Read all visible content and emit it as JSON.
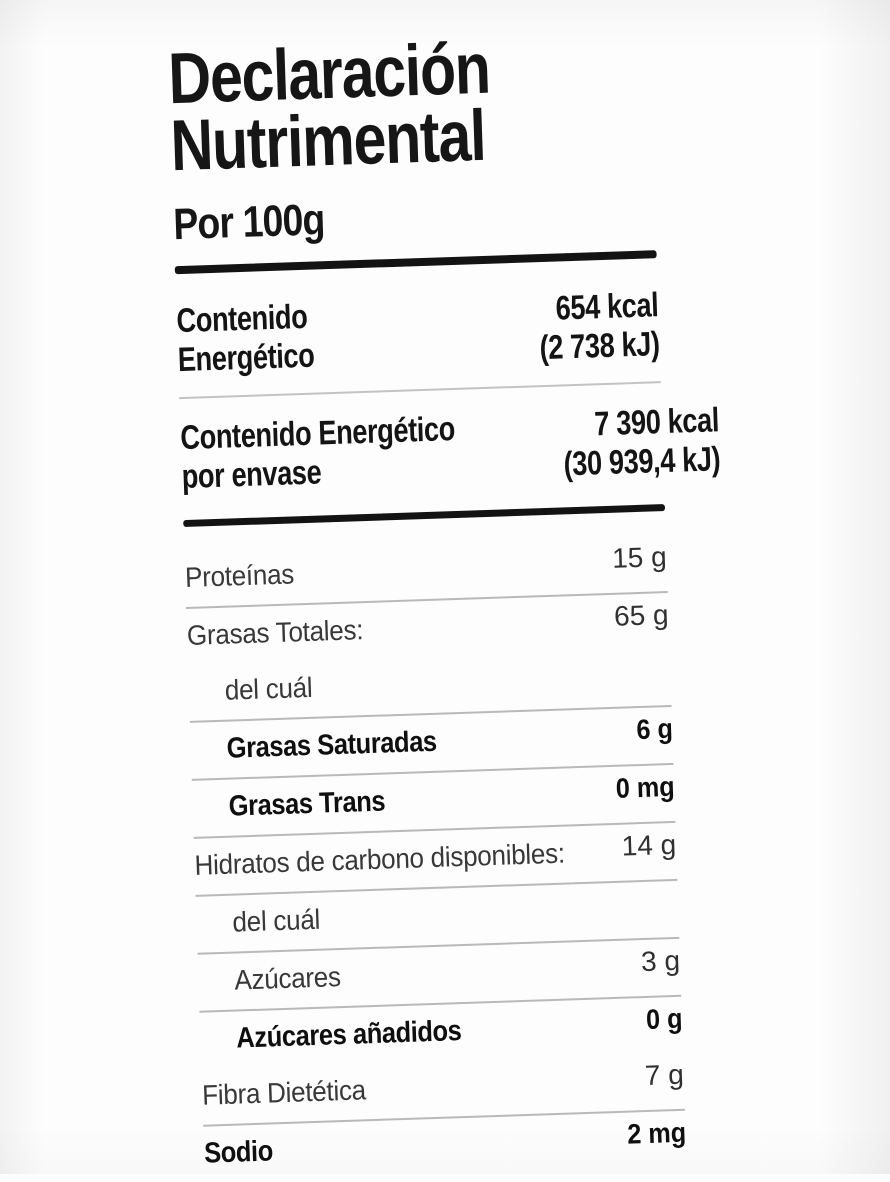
{
  "label": {
    "title_line1": "Declaración",
    "title_line2": "Nutrimental",
    "serving": "Por 100g",
    "energy_rows": [
      {
        "name_line1": "Contenido",
        "name_line2": "Energético",
        "value_line1": "654 kcal",
        "value_line2": "(2 738 kJ)"
      },
      {
        "name_line1": "Contenido Energético",
        "name_line2": "por envase",
        "value_line1": "7 390 kcal",
        "value_line2": "(30 939,4 kJ)"
      }
    ],
    "nutrient_rows": [
      {
        "name": "Proteínas",
        "value": "15 g",
        "bold": false,
        "indent": false,
        "line": true
      },
      {
        "name": "Grasas Totales:",
        "value": "65 g",
        "bold": false,
        "indent": false,
        "line": false
      },
      {
        "name": "del cuál",
        "value": "",
        "bold": false,
        "indent": true,
        "line": true
      },
      {
        "name": "Grasas Saturadas",
        "value": "6 g",
        "bold": true,
        "indent": true,
        "line": true
      },
      {
        "name": "Grasas Trans",
        "value": "0 mg",
        "bold": true,
        "indent": true,
        "line": true
      },
      {
        "name": "Hidratos de carbono disponibles:",
        "value": "14 g",
        "bold": false,
        "indent": false,
        "line": true
      },
      {
        "name": "del cuál",
        "value": "",
        "bold": false,
        "indent": true,
        "line": true
      },
      {
        "name": "Azúcares",
        "value": "3 g",
        "bold": false,
        "indent": true,
        "line": true
      },
      {
        "name": "Azúcares añadidos",
        "value": "0 g",
        "bold": true,
        "indent": true,
        "line": false
      },
      {
        "name": "Fibra Dietética",
        "value": "7 g",
        "bold": false,
        "indent": false,
        "line": true
      },
      {
        "name": "Sodio",
        "value": "2 mg",
        "bold": true,
        "indent": false,
        "line": false
      }
    ],
    "colors": {
      "text": "#161616",
      "thick_rule": "#131313",
      "divider": "#b9b9b9",
      "background": "#fdfdfd"
    }
  }
}
